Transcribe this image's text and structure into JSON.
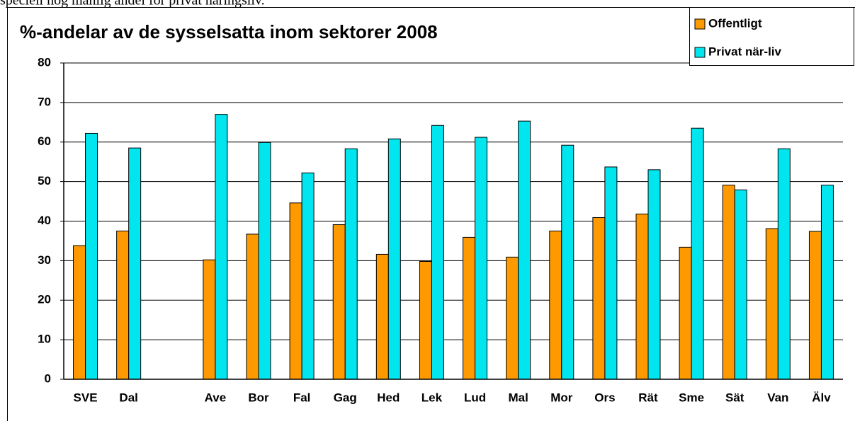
{
  "note": "speciell hög manlig andel för privat näringsliv.",
  "chart_data": {
    "type": "bar",
    "title": "%-andelar av de sysselsatta inom sektorer  2008",
    "categories": [
      "SVE",
      "Dal",
      null,
      "Ave",
      "Bor",
      "Fal",
      "Gag",
      "Hed",
      "Lek",
      "Lud",
      "Mal",
      "Mor",
      "Ors",
      "Rät",
      "Sme",
      "Sät",
      "Van",
      "Älv"
    ],
    "series": [
      {
        "name": "Offentligt",
        "color": "#ff9900",
        "values": [
          33.8,
          37.5,
          null,
          30.2,
          36.7,
          44.6,
          39.1,
          31.6,
          29.8,
          35.9,
          30.9,
          37.5,
          40.9,
          41.8,
          33.4,
          49.1,
          38.1,
          37.4
        ]
      },
      {
        "name": "Privat när-liv",
        "color": "#00e5ee",
        "values": [
          62.2,
          58.5,
          null,
          67.0,
          59.9,
          52.2,
          58.3,
          60.8,
          64.2,
          61.2,
          65.3,
          59.2,
          53.7,
          53.0,
          63.5,
          47.9,
          58.3,
          49.1
        ]
      }
    ],
    "ylim": [
      0,
      80
    ],
    "yticks": [
      0,
      10,
      20,
      30,
      40,
      50,
      60,
      70,
      80
    ],
    "grid": true,
    "legend": "top-right"
  }
}
